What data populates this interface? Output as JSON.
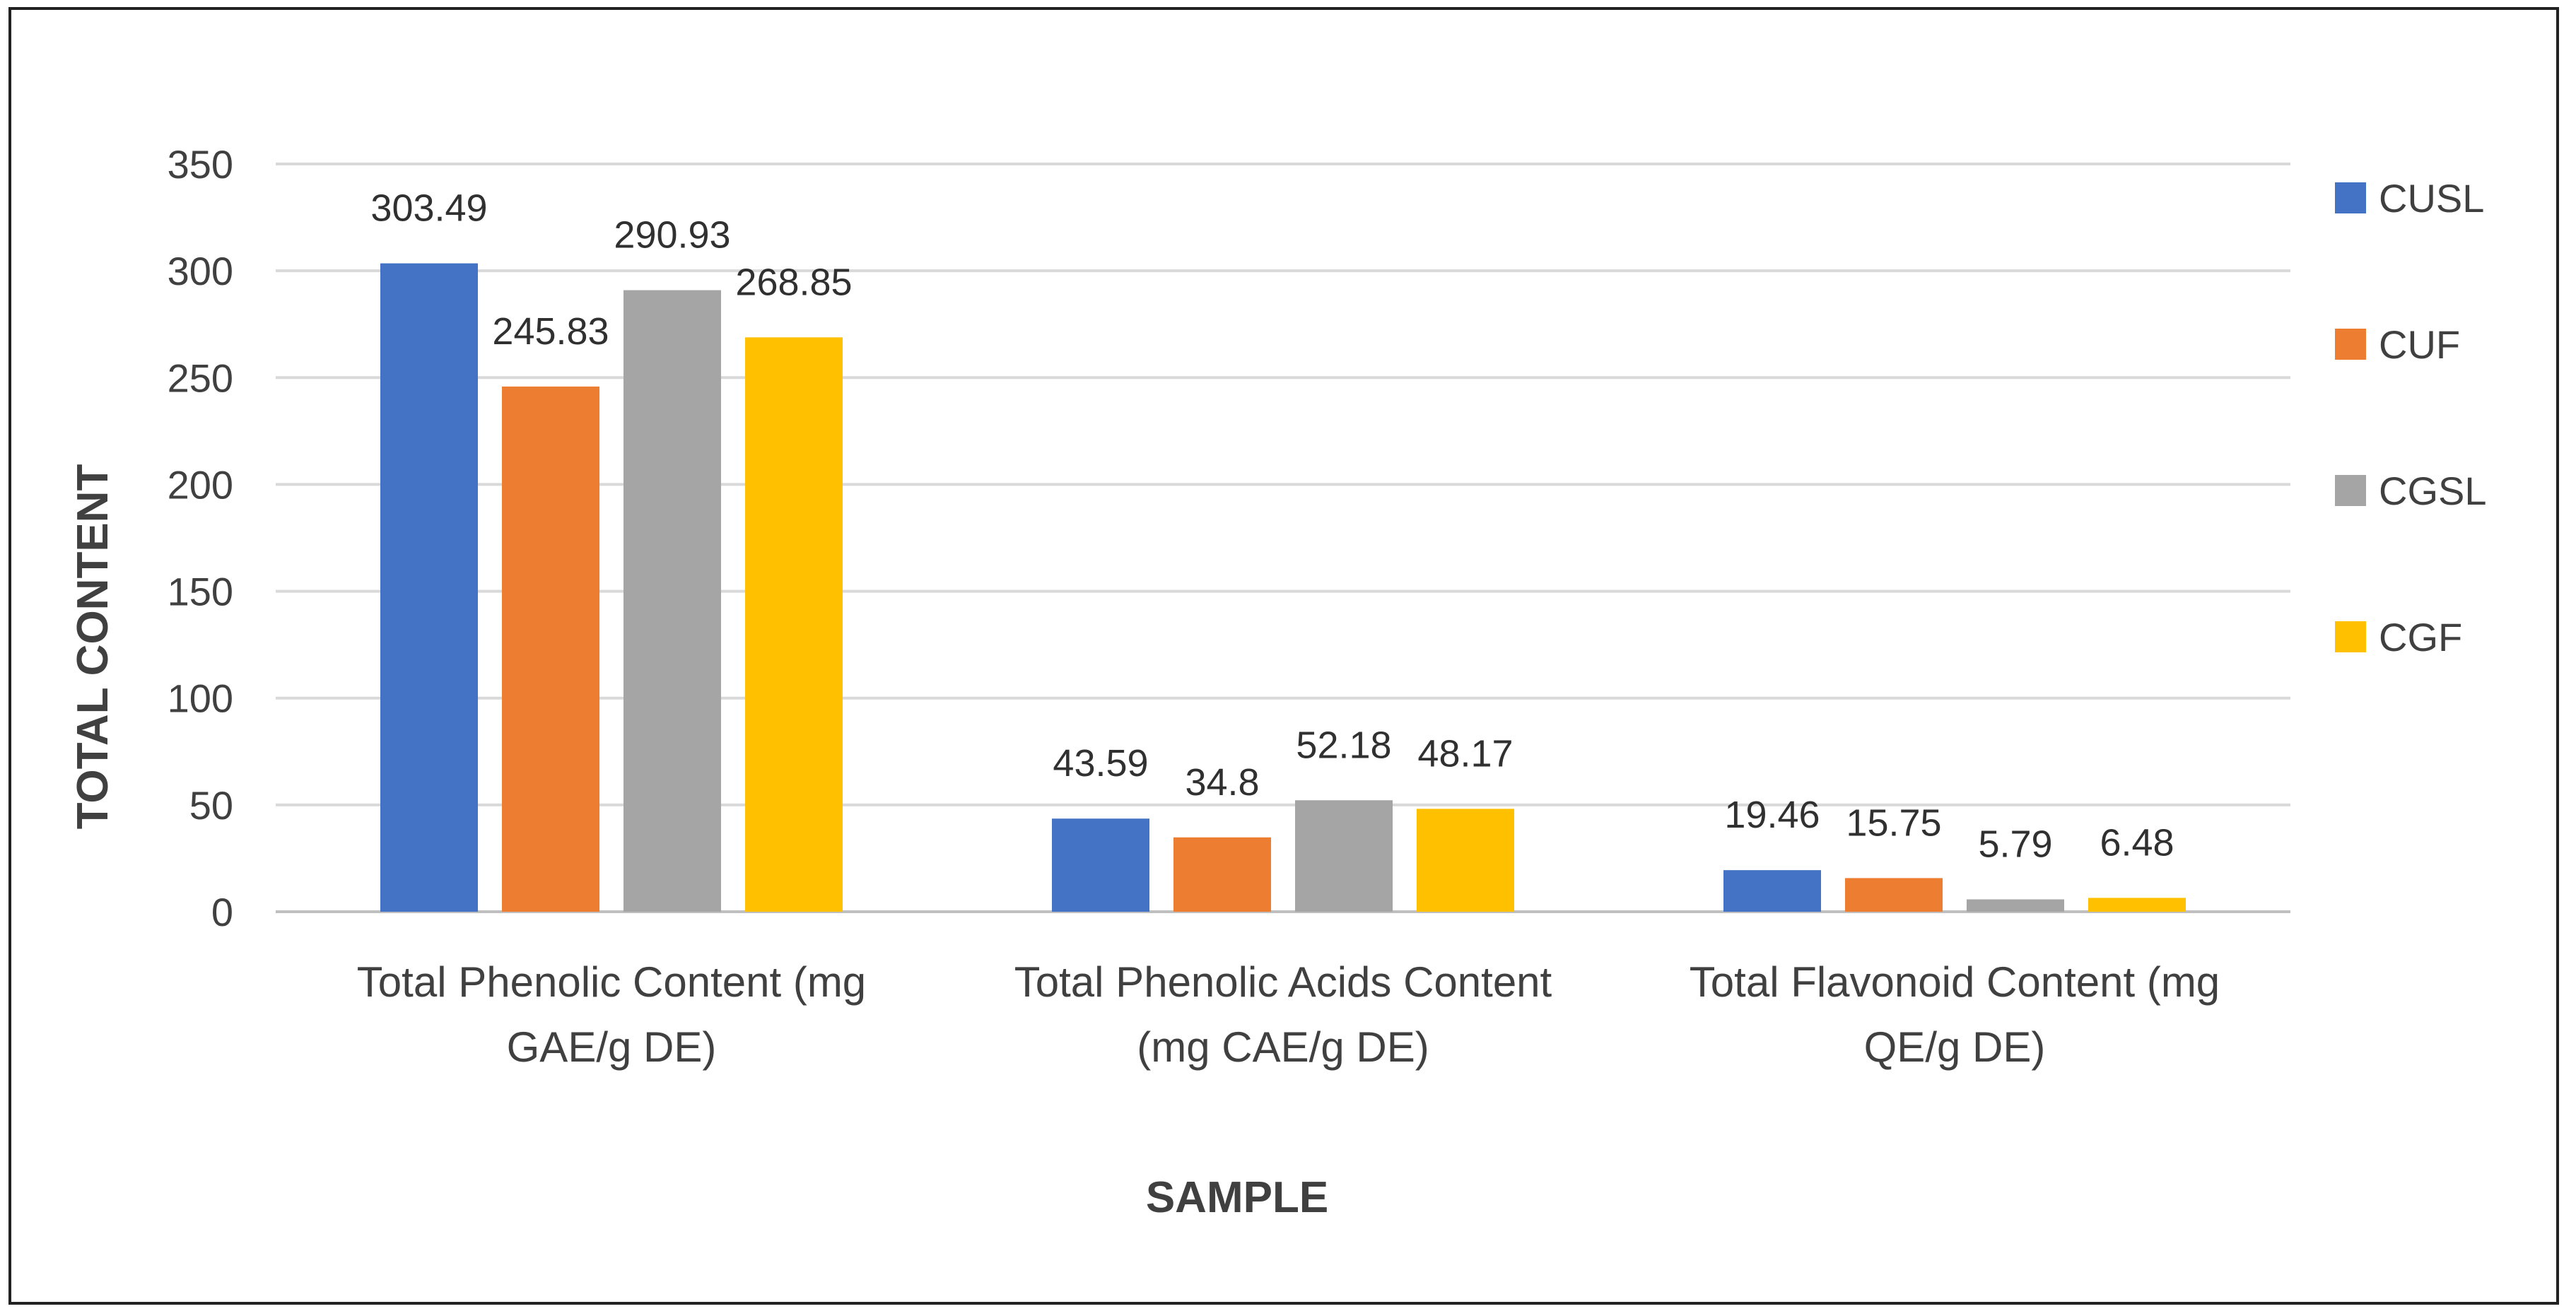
{
  "chart_data": {
    "type": "bar",
    "title": "",
    "xlabel": "SAMPLE",
    "ylabel": "TOTAL CONTENT",
    "ylim": [
      0,
      350
    ],
    "yticks": [
      0,
      50,
      100,
      150,
      200,
      250,
      300,
      350
    ],
    "grid": true,
    "legend_position": "right",
    "categories": [
      {
        "line1": "Total Phenolic Content (mg",
        "line2": "GAE/g DE)"
      },
      {
        "line1": "Total Phenolic Acids Content",
        "line2": "(mg CAE/g DE)"
      },
      {
        "line1": "Total Flavonoid Content (mg",
        "line2": "QE/g DE)"
      }
    ],
    "series": [
      {
        "name": "CUSL",
        "color": "#4472C4",
        "values": [
          303.49,
          43.59,
          19.46
        ],
        "labels": [
          "303.49",
          "43.59",
          "19.46"
        ]
      },
      {
        "name": "CUF",
        "color": "#ED7D31",
        "values": [
          245.83,
          34.8,
          15.75
        ],
        "labels": [
          "245.83",
          "34.8",
          "15.75"
        ]
      },
      {
        "name": "CGSL",
        "color": "#A5A5A5",
        "values": [
          290.93,
          52.18,
          5.79
        ],
        "labels": [
          "290.93",
          "52.18",
          "5.79"
        ]
      },
      {
        "name": "CGF",
        "color": "#FFC000",
        "values": [
          268.85,
          48.17,
          6.48
        ],
        "labels": [
          "268.85",
          "48.17",
          "6.48"
        ]
      }
    ]
  }
}
